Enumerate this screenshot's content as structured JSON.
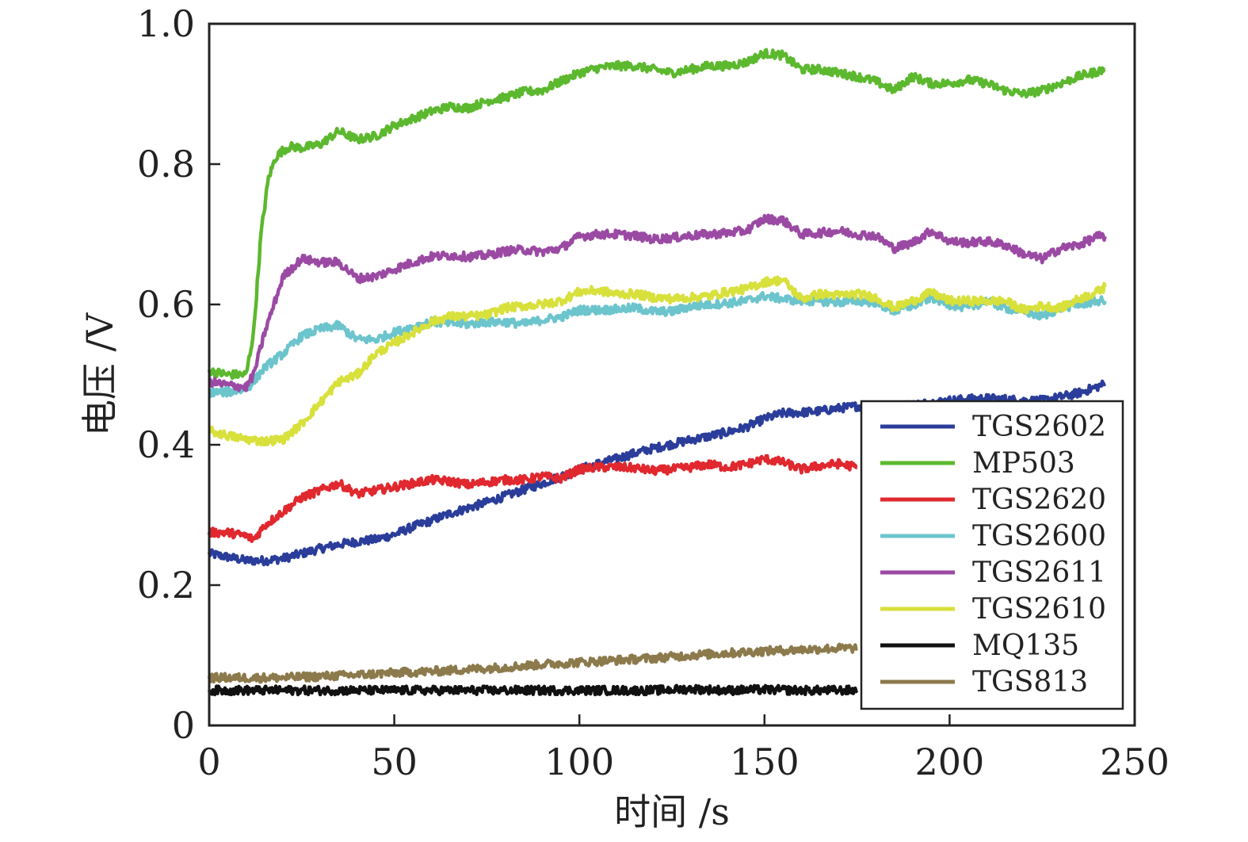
{
  "chart_data": {
    "type": "line",
    "title": "",
    "xlabel": "时间 /s",
    "ylabel": "电压 /V",
    "xlim": [
      0,
      250
    ],
    "ylim": [
      0,
      1.0
    ],
    "xticks": [
      0,
      50,
      100,
      150,
      200,
      250
    ],
    "xtick_labels": [
      "0",
      "50",
      "100",
      "150",
      "200",
      "250"
    ],
    "yticks": [
      0,
      0.2,
      0.4,
      0.6,
      0.8,
      1.0
    ],
    "ytick_labels": [
      "0",
      "0.2",
      "0.4",
      "0.6",
      "0.8",
      "1.0"
    ],
    "grid": false,
    "legend_position": "lower-right",
    "series": [
      {
        "name": "TGS2602",
        "color": "#2b3d9a",
        "x": [
          0,
          5,
          10,
          15,
          20,
          25,
          30,
          35,
          40,
          45,
          50,
          55,
          60,
          65,
          70,
          75,
          80,
          85,
          90,
          95,
          100,
          105,
          110,
          115,
          120,
          125,
          130,
          135,
          140,
          145,
          150,
          155,
          160,
          165,
          170,
          175,
          180,
          185,
          190,
          195,
          200,
          205,
          210,
          215,
          220,
          225,
          230,
          235,
          240,
          242
        ],
        "y": [
          0.245,
          0.24,
          0.235,
          0.235,
          0.238,
          0.245,
          0.252,
          0.258,
          0.262,
          0.265,
          0.272,
          0.283,
          0.292,
          0.302,
          0.31,
          0.318,
          0.327,
          0.336,
          0.345,
          0.355,
          0.365,
          0.373,
          0.38,
          0.388,
          0.395,
          0.401,
          0.407,
          0.412,
          0.418,
          0.425,
          0.437,
          0.445,
          0.446,
          0.448,
          0.452,
          0.455,
          0.455,
          0.455,
          0.457,
          0.46,
          0.463,
          0.465,
          0.466,
          0.465,
          0.463,
          0.463,
          0.468,
          0.474,
          0.483,
          0.487
        ]
      },
      {
        "name": "MP503",
        "color": "#5cb82e",
        "x": [
          0,
          5,
          10,
          12,
          14,
          16,
          18,
          20,
          22,
          25,
          30,
          35,
          40,
          45,
          50,
          55,
          60,
          65,
          70,
          75,
          80,
          85,
          90,
          95,
          100,
          105,
          110,
          115,
          120,
          125,
          130,
          135,
          140,
          145,
          150,
          155,
          160,
          165,
          170,
          175,
          180,
          185,
          190,
          195,
          200,
          205,
          210,
          215,
          220,
          225,
          230,
          235,
          240,
          242
        ],
        "y": [
          0.505,
          0.5,
          0.5,
          0.56,
          0.7,
          0.78,
          0.81,
          0.82,
          0.825,
          0.823,
          0.828,
          0.847,
          0.835,
          0.84,
          0.855,
          0.865,
          0.875,
          0.882,
          0.88,
          0.89,
          0.895,
          0.903,
          0.905,
          0.918,
          0.93,
          0.937,
          0.94,
          0.94,
          0.935,
          0.93,
          0.935,
          0.94,
          0.94,
          0.945,
          0.958,
          0.955,
          0.935,
          0.935,
          0.93,
          0.925,
          0.918,
          0.905,
          0.925,
          0.915,
          0.915,
          0.92,
          0.915,
          0.905,
          0.9,
          0.905,
          0.915,
          0.925,
          0.932,
          0.935
        ]
      },
      {
        "name": "TGS2620",
        "color": "#e0282e",
        "x": [
          0,
          5,
          10,
          12,
          15,
          20,
          25,
          30,
          35,
          40,
          45,
          50,
          55,
          60,
          65,
          70,
          75,
          80,
          85,
          90,
          95,
          100,
          105,
          110,
          115,
          120,
          125,
          130,
          135,
          140,
          145,
          150,
          155,
          160,
          165,
          170,
          175
        ],
        "y": [
          0.275,
          0.275,
          0.27,
          0.265,
          0.285,
          0.305,
          0.325,
          0.335,
          0.345,
          0.33,
          0.335,
          0.34,
          0.345,
          0.35,
          0.348,
          0.343,
          0.347,
          0.35,
          0.35,
          0.355,
          0.352,
          0.365,
          0.368,
          0.368,
          0.367,
          0.363,
          0.365,
          0.368,
          0.372,
          0.368,
          0.372,
          0.38,
          0.375,
          0.365,
          0.37,
          0.373,
          0.368
        ]
      },
      {
        "name": "TGS2600",
        "color": "#6cc4cc",
        "x": [
          0,
          5,
          10,
          12,
          15,
          20,
          25,
          30,
          35,
          40,
          45,
          50,
          55,
          60,
          65,
          70,
          75,
          80,
          85,
          90,
          95,
          100,
          105,
          110,
          115,
          120,
          125,
          130,
          135,
          140,
          145,
          150,
          155,
          160,
          165,
          170,
          175,
          180,
          185,
          190,
          195,
          200,
          205,
          210,
          215,
          220,
          225,
          230,
          235,
          240,
          242
        ],
        "y": [
          0.475,
          0.475,
          0.48,
          0.49,
          0.51,
          0.53,
          0.555,
          0.565,
          0.57,
          0.55,
          0.55,
          0.56,
          0.568,
          0.575,
          0.573,
          0.572,
          0.575,
          0.575,
          0.572,
          0.578,
          0.582,
          0.592,
          0.592,
          0.593,
          0.595,
          0.59,
          0.59,
          0.597,
          0.6,
          0.602,
          0.605,
          0.612,
          0.608,
          0.605,
          0.605,
          0.603,
          0.605,
          0.603,
          0.59,
          0.598,
          0.61,
          0.6,
          0.595,
          0.605,
          0.595,
          0.59,
          0.583,
          0.595,
          0.6,
          0.605,
          0.605
        ]
      },
      {
        "name": "TGS2611",
        "color": "#9b4aa4",
        "x": [
          0,
          5,
          10,
          12,
          15,
          20,
          25,
          30,
          35,
          40,
          45,
          50,
          55,
          60,
          65,
          70,
          75,
          80,
          85,
          90,
          95,
          100,
          105,
          110,
          115,
          120,
          125,
          130,
          135,
          140,
          145,
          150,
          155,
          160,
          165,
          170,
          175,
          180,
          185,
          190,
          195,
          200,
          205,
          210,
          215,
          220,
          225,
          230,
          235,
          240,
          242
        ],
        "y": [
          0.49,
          0.485,
          0.482,
          0.5,
          0.56,
          0.64,
          0.665,
          0.66,
          0.66,
          0.637,
          0.64,
          0.65,
          0.66,
          0.668,
          0.67,
          0.668,
          0.67,
          0.676,
          0.678,
          0.675,
          0.68,
          0.697,
          0.7,
          0.7,
          0.698,
          0.693,
          0.695,
          0.698,
          0.7,
          0.702,
          0.705,
          0.722,
          0.72,
          0.7,
          0.702,
          0.705,
          0.7,
          0.698,
          0.68,
          0.688,
          0.705,
          0.69,
          0.688,
          0.69,
          0.685,
          0.672,
          0.665,
          0.68,
          0.685,
          0.697,
          0.697
        ]
      },
      {
        "name": "TGS2610",
        "color": "#d8e03c",
        "x": [
          0,
          5,
          10,
          15,
          20,
          25,
          30,
          35,
          40,
          45,
          50,
          55,
          60,
          65,
          70,
          75,
          80,
          85,
          90,
          95,
          100,
          105,
          110,
          115,
          120,
          125,
          130,
          135,
          140,
          145,
          150,
          155,
          160,
          165,
          170,
          175,
          180,
          185,
          190,
          195,
          200,
          205,
          210,
          215,
          220,
          225,
          230,
          235,
          240,
          242
        ],
        "y": [
          0.42,
          0.413,
          0.408,
          0.405,
          0.408,
          0.43,
          0.46,
          0.49,
          0.5,
          0.53,
          0.545,
          0.56,
          0.575,
          0.583,
          0.583,
          0.585,
          0.595,
          0.598,
          0.6,
          0.605,
          0.618,
          0.62,
          0.615,
          0.615,
          0.61,
          0.608,
          0.61,
          0.612,
          0.618,
          0.622,
          0.632,
          0.635,
          0.608,
          0.615,
          0.613,
          0.615,
          0.61,
          0.595,
          0.605,
          0.617,
          0.605,
          0.605,
          0.605,
          0.605,
          0.592,
          0.598,
          0.595,
          0.608,
          0.618,
          0.625
        ]
      },
      {
        "name": "MQ135",
        "color": "#111111",
        "x": [
          0,
          10,
          20,
          30,
          40,
          50,
          60,
          70,
          80,
          90,
          100,
          110,
          120,
          130,
          140,
          150,
          160,
          170,
          175
        ],
        "y": [
          0.05,
          0.05,
          0.05,
          0.05,
          0.05,
          0.05,
          0.05,
          0.05,
          0.05,
          0.05,
          0.05,
          0.05,
          0.05,
          0.052,
          0.05,
          0.051,
          0.05,
          0.05,
          0.05
        ]
      },
      {
        "name": "TGS813",
        "color": "#8c7a4c",
        "x": [
          0,
          10,
          20,
          30,
          40,
          50,
          60,
          70,
          80,
          90,
          100,
          110,
          120,
          130,
          140,
          150,
          160,
          170,
          175
        ],
        "y": [
          0.068,
          0.068,
          0.068,
          0.07,
          0.072,
          0.075,
          0.077,
          0.08,
          0.083,
          0.087,
          0.09,
          0.093,
          0.096,
          0.1,
          0.103,
          0.106,
          0.108,
          0.11,
          0.11
        ]
      }
    ]
  }
}
